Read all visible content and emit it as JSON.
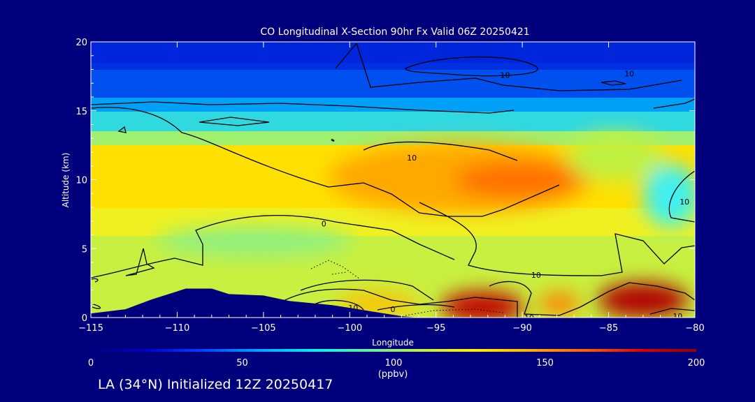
{
  "chart_data": {
    "type": "heatmap",
    "title": "CO Longitudinal X-Section 90hr  Fx Valid 06Z 20250421",
    "xlabel": "Longitude",
    "ylabel": "Altitude (km)",
    "xlim": [
      -115,
      -80
    ],
    "ylim": [
      0,
      20
    ],
    "x_ticks": [
      -115,
      -110,
      -105,
      -100,
      -95,
      -90,
      -85,
      -80
    ],
    "y_ticks": [
      0,
      5,
      10,
      15,
      20
    ],
    "x_tick_labels": [
      "−115",
      "−110",
      "−105",
      "−100",
      "−95",
      "−90",
      "−85",
      "−80"
    ],
    "y_tick_labels": [
      "0",
      "5",
      "10",
      "15",
      "20"
    ],
    "colorbar": {
      "min": 0,
      "max": 200,
      "ticks": [
        0,
        50,
        100,
        150,
        200
      ],
      "tick_labels": [
        "0",
        "50",
        "100",
        "150",
        "200"
      ],
      "units": "(ppbv)",
      "colors": [
        "#00007c",
        "#0000c8",
        "#0040ff",
        "#00a0ff",
        "#00f0f0",
        "#60f0a0",
        "#c0f040",
        "#fff000",
        "#ffb000",
        "#ff6000",
        "#e00000",
        "#900000"
      ]
    },
    "contour_labels": [
      {
        "text": "10",
        "x": -91.0,
        "y": 17.6
      },
      {
        "text": "10",
        "x": -83.8,
        "y": 17.7
      },
      {
        "text": "10",
        "x": -96.4,
        "y": 11.6
      },
      {
        "text": "10",
        "x": -80.6,
        "y": 8.4
      },
      {
        "text": "0",
        "x": -101.5,
        "y": 6.8
      },
      {
        "text": "10",
        "x": -89.2,
        "y": 3.1
      },
      {
        "text": "10",
        "x": -99.8,
        "y": 0.7
      },
      {
        "text": "0",
        "x": -97.5,
        "y": 0.6
      },
      {
        "text": "10",
        "x": -89.6,
        "y": 0.0
      },
      {
        "text": "10",
        "x": -81.0,
        "y": 0.1
      }
    ],
    "terrain": [
      [
        -115,
        0.3
      ],
      [
        -113,
        0.6
      ],
      [
        -111.5,
        1.3
      ],
      [
        -109.5,
        2.1
      ],
      [
        -108,
        2.1
      ],
      [
        -107,
        1.7
      ],
      [
        -105,
        1.6
      ],
      [
        -103.5,
        1.2
      ],
      [
        -101,
        0.9
      ],
      [
        -98.5,
        0.4
      ],
      [
        -97,
        0.1
      ],
      [
        -96,
        0
      ]
    ]
  },
  "footer": {
    "text": "LA (34°N) Initialized 12Z 20250417"
  }
}
